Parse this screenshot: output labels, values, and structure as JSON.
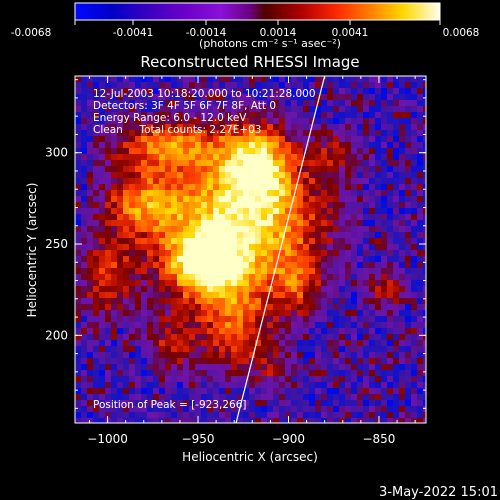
{
  "colorbar": {
    "tick_labels": [
      "-0.0068",
      "-0.0041",
      "-0.0014",
      "0.0014",
      "0.0041",
      "0.0068"
    ],
    "units_label": "(photons cm⁻² s⁻¹ asec⁻²)",
    "range": [
      -0.0068,
      0.0068
    ]
  },
  "annotations": {
    "time": "12-Jul-2003 10:18:20.000 to 10:21:28.000",
    "detectors": "Detectors: 3F 4F 5F 6F 7F 8F, Att 0",
    "energy": "Energy Range: 6.0 - 12.0 keV",
    "clean": "Clean     Total counts: 2.27E+03",
    "peak": "Position of Peak = [-923,266]"
  },
  "footer": {
    "timestamp": "3-May-2022 15:01"
  },
  "chart_data": {
    "type": "heatmap",
    "title": "Reconstructed RHESSI Image",
    "xlabel": "Heliocentric X (arcsec)",
    "ylabel": "Heliocentric Y (arcsec)",
    "x_ticks": [
      -1000,
      -950,
      -900,
      -850
    ],
    "y_ticks": [
      200,
      250,
      300
    ],
    "x_tick_labels": [
      "−1000",
      "−950",
      "−900",
      "−850"
    ],
    "y_tick_labels": [
      "200",
      "250",
      "300"
    ],
    "xlim": [
      -1018,
      -824
    ],
    "ylim": [
      152,
      342
    ],
    "colormap": "rhessi-rainbow",
    "peak_position": [
      -923,
      266
    ],
    "emission_blobs": [
      {
        "x": -925,
        "y": 262,
        "sx": 32,
        "sy": 26,
        "amp": 1.0
      },
      {
        "x": -947,
        "y": 239,
        "sx": 15,
        "sy": 13,
        "amp": 0.95
      },
      {
        "x": -918,
        "y": 294,
        "sx": 14,
        "sy": 16,
        "amp": 0.8
      },
      {
        "x": -980,
        "y": 272,
        "sx": 16,
        "sy": 12,
        "amp": 0.65
      },
      {
        "x": -968,
        "y": 304,
        "sx": 22,
        "sy": 10,
        "amp": 0.7
      },
      {
        "x": -1000,
        "y": 232,
        "sx": 12,
        "sy": 16,
        "amp": 0.55
      },
      {
        "x": -930,
        "y": 205,
        "sx": 14,
        "sy": 18,
        "amp": 0.6
      },
      {
        "x": -965,
        "y": 195,
        "sx": 10,
        "sy": 12,
        "amp": 0.45
      },
      {
        "x": -896,
        "y": 226,
        "sx": 10,
        "sy": 14,
        "amp": 0.4
      },
      {
        "x": -908,
        "y": 182,
        "sx": 8,
        "sy": 8,
        "amp": 0.35
      },
      {
        "x": -845,
        "y": 225,
        "sx": 9,
        "sy": 9,
        "amp": 0.4
      },
      {
        "x": -875,
        "y": 300,
        "sx": 9,
        "sy": 10,
        "amp": 0.3
      }
    ],
    "limb_line": [
      [
        -929,
        152
      ],
      [
        -880,
        342
      ]
    ]
  }
}
